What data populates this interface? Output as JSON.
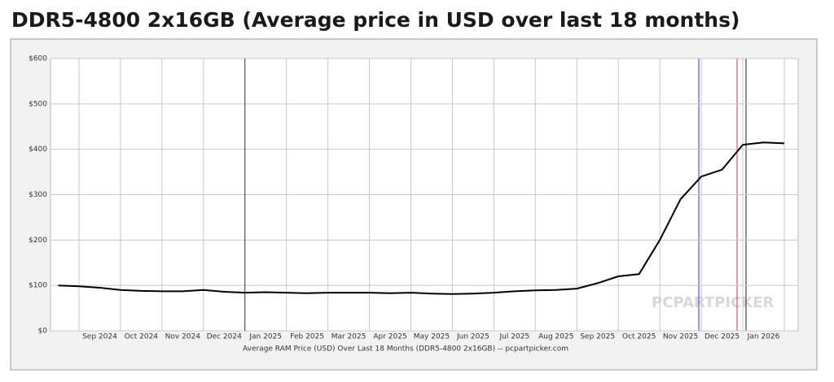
{
  "chart_data": {
    "type": "line",
    "title": "DDR5-4800 2x16GB (Average price in USD over last 18 months)",
    "x_label": "Average RAM Price (USD) Over Last 18 Months (DDR5-4800 2x16GB) -- pcpartpicker.com",
    "watermark": "PCPARTPICKER",
    "categories": [
      null,
      null,
      "Sep 2024",
      null,
      "Oct 2024",
      null,
      "Nov 2024",
      null,
      "Dec 2024",
      null,
      "Jan 2025",
      null,
      "Feb 2025",
      null,
      "Mar 2025",
      null,
      "Apr 2025",
      null,
      "May 2025",
      null,
      "Jun 2025",
      null,
      "Jul 2025",
      null,
      "Aug 2025",
      null,
      "Sep 2025",
      null,
      "Oct 2025",
      null,
      "Nov 2025",
      null,
      "Dec 2025",
      null,
      "Jan 2026",
      null
    ],
    "values": [
      100,
      98,
      95,
      90,
      88,
      87,
      87,
      90,
      86,
      84,
      85,
      84,
      83,
      84,
      84,
      84,
      83,
      84,
      82,
      81,
      82,
      84,
      87,
      89,
      90,
      93,
      105,
      120,
      125,
      200,
      290,
      340,
      355,
      410,
      415,
      413
    ],
    "color": "#000000",
    "ylim": [
      0,
      600
    ],
    "yticks": [
      {
        "value": 0,
        "label": "$0"
      },
      {
        "value": 100,
        "label": "$100"
      },
      {
        "value": 200,
        "label": "$200"
      },
      {
        "value": 300,
        "label": "$300"
      },
      {
        "value": 400,
        "label": "$400"
      },
      {
        "value": 500,
        "label": "$500"
      },
      {
        "value": 600,
        "label": "$600"
      }
    ],
    "grid": true
  }
}
